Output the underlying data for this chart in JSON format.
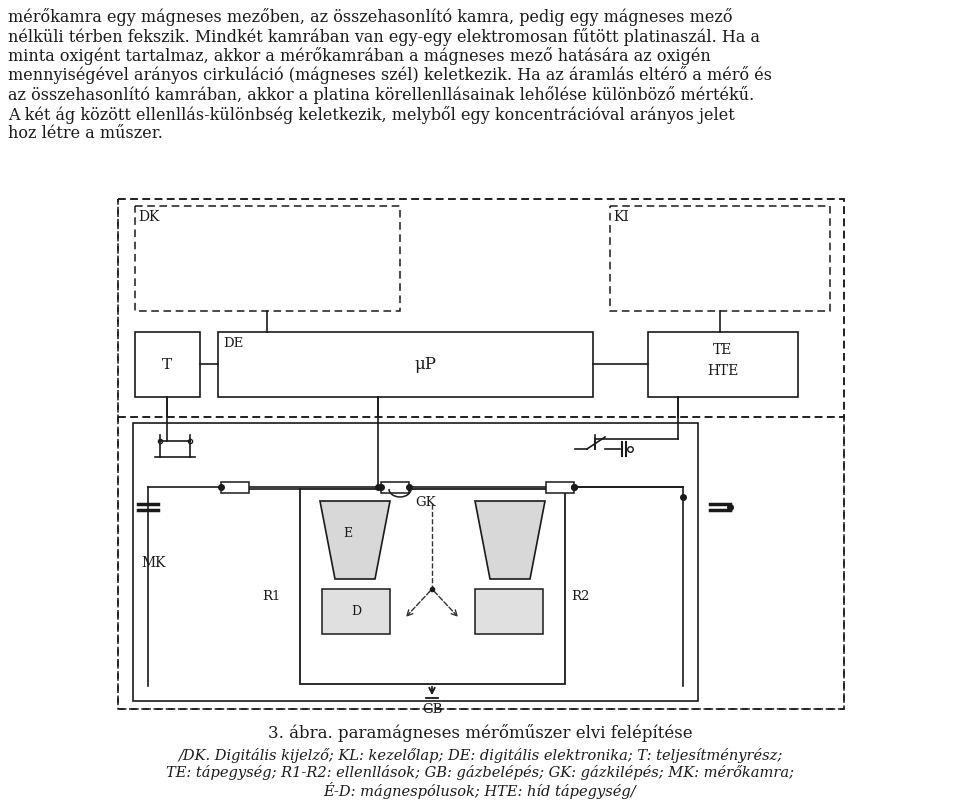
{
  "bg_color": "#ffffff",
  "line_color": "#1a1a1a",
  "header_lines": [
    "mérőkamra egy mágneses mezőben, az összehasonlító kamra, pedig egy mágneses mező",
    "nélküli térben fekszik. Mindkét kamrában van egy-egy elektromosan fűtött platinaszál. Ha a",
    "minta oxigént tartalmaz, akkor a mérőkamrában a mágneses mező hatására az oxigén",
    "mennyiségével arányos cirkuláció (mágneses szél) keletkezik. Ha az áramlás eltérő a mérő és",
    "az összehasonlító kamrában, akkor a platina körellenllásainak lehőlése különböző mértékű.",
    "A két ág között ellenllás-különbség keletkezik, melyből egy koncentrációval arányos jelet",
    "hoz létre a műszer."
  ],
  "caption": "3. ábra. paramágneses mérőműszer elvi felépítése",
  "footer_lines": [
    "/DK. Digitális kijelző; KL: kezelőlap; DE: digitális elektronika; T: teljesítményrész;",
    "TE: tápegység; R1-R2: ellenllások; GB: gázbelépés; GK: gázkilépés; MK: mérőkamra;",
    "É-D: mágnespólusok; HTE: híd tápegység/"
  ]
}
